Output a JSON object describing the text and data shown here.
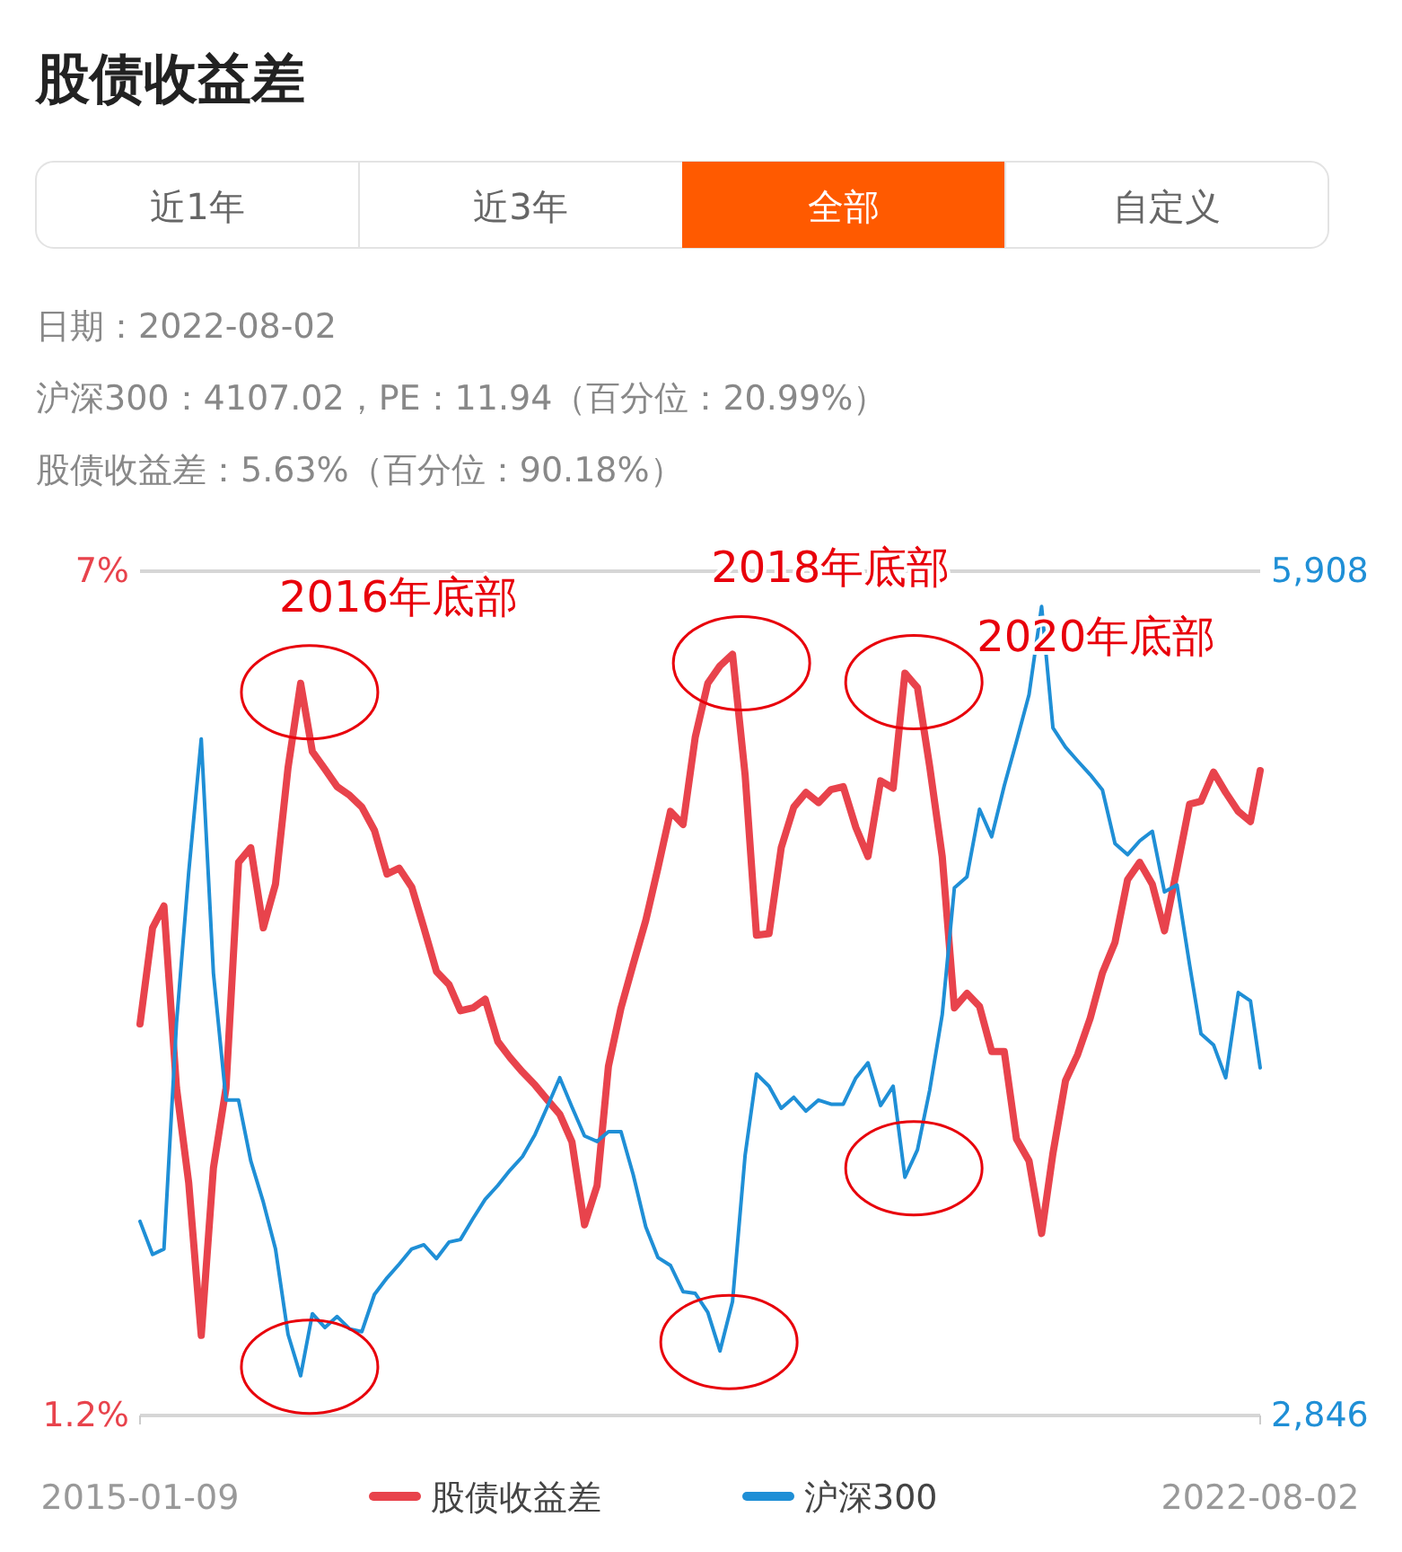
{
  "chart_data": {
    "type": "line",
    "title": "股债收益差",
    "annotations": [
      "近1年",
      "近3年",
      "全部",
      "自定义",
      "日期：2022-08-02",
      "沪深300：4107.02，PE：11.94（百分位：20.99%）",
      "股债收益差：5.63%（百分位：90.18%）",
      {
        "text": "2016年底部",
        "x": "2016-02-09",
        "y": 6.23
      },
      {
        "text": "2018年底部",
        "x": "2019-01-09",
        "y": 6.43
      },
      {
        "text": "2020年底部",
        "x": "2020-03-09",
        "y": 6.3
      }
    ],
    "x": [
      "2015-01-09",
      "2015-02-09",
      "2015-03-09",
      "2015-04-09",
      "2015-05-09",
      "2015-06-09",
      "2015-07-09",
      "2015-08-09",
      "2015-09-09",
      "2015-10-09",
      "2015-11-09",
      "2015-12-09",
      "2016-01-09",
      "2016-02-09",
      "2016-03-09",
      "2016-04-09",
      "2016-05-09",
      "2016-06-09",
      "2016-07-09",
      "2016-08-09",
      "2016-09-09",
      "2016-10-09",
      "2016-11-09",
      "2016-12-09",
      "2017-01-09",
      "2017-02-09",
      "2017-03-09",
      "2017-04-09",
      "2017-05-09",
      "2017-06-09",
      "2017-07-09",
      "2017-08-09",
      "2017-09-09",
      "2017-10-09",
      "2017-11-09",
      "2017-12-09",
      "2018-01-09",
      "2018-02-09",
      "2018-03-09",
      "2018-04-09",
      "2018-05-09",
      "2018-06-09",
      "2018-07-09",
      "2018-08-09",
      "2018-09-09",
      "2018-10-09",
      "2018-11-09",
      "2018-12-09",
      "2019-01-09",
      "2019-02-09",
      "2019-03-09",
      "2019-04-09",
      "2019-05-09",
      "2019-06-09",
      "2019-07-09",
      "2019-08-09",
      "2019-09-09",
      "2019-10-09",
      "2019-11-09",
      "2019-12-09",
      "2020-01-09",
      "2020-02-09",
      "2020-03-09",
      "2020-04-09",
      "2020-05-09",
      "2020-06-09",
      "2020-07-09",
      "2020-08-09",
      "2020-09-09",
      "2020-10-09",
      "2020-11-09",
      "2020-12-09",
      "2021-01-09",
      "2021-02-09",
      "2021-03-09",
      "2021-04-09",
      "2021-05-09",
      "2021-06-09",
      "2021-07-09",
      "2021-08-09",
      "2021-09-09",
      "2021-10-09",
      "2021-11-09",
      "2021-12-09",
      "2022-01-09",
      "2022-02-09",
      "2022-03-09",
      "2022-04-09",
      "2022-05-09",
      "2022-06-09",
      "2022-07-09",
      "2022-08-02"
    ],
    "xlim": [
      "2015-01-09",
      "2022-08-02"
    ],
    "xticks": [
      "2015-01-09",
      "2022-08-02"
    ],
    "ylim": [
      1.2,
      7
    ],
    "yticks": [
      {
        "value": 1.2,
        "label": "1.2%"
      },
      {
        "value": 7,
        "label": "7%"
      }
    ],
    "y2lim": [
      2846,
      5908
    ],
    "y2ticks": [
      {
        "value": 2846,
        "label": "2,846"
      },
      {
        "value": 5908,
        "label": "5,908"
      }
    ],
    "legend": "bottom",
    "series": [
      {
        "name": "股债收益差",
        "color": "#e8434c",
        "values": [
          3.89,
          4.55,
          4.7,
          3.45,
          2.8,
          1.75,
          2.9,
          3.45,
          5.0,
          5.1,
          4.55,
          4.85,
          5.65,
          6.23,
          5.76,
          5.64,
          5.52,
          5.46,
          5.38,
          5.22,
          4.92,
          4.96,
          4.83,
          4.55,
          4.25,
          4.16,
          3.98,
          4.0,
          4.06,
          3.77,
          3.66,
          3.56,
          3.47,
          3.37,
          3.27,
          3.08,
          2.51,
          2.78,
          3.6,
          4.0,
          4.3,
          4.6,
          4.96,
          5.35,
          5.26,
          5.86,
          6.23,
          6.35,
          6.43,
          5.6,
          4.5,
          4.51,
          5.1,
          5.38,
          5.48,
          5.41,
          5.5,
          5.52,
          5.24,
          5.04,
          5.56,
          5.51,
          6.3,
          6.2,
          5.66,
          5.04,
          4.0,
          4.1,
          4.01,
          3.7,
          3.7,
          3.1,
          2.95,
          2.45,
          3.0,
          3.5,
          3.68,
          3.93,
          4.24,
          4.45,
          4.88,
          5.0,
          4.85,
          4.53,
          4.96,
          5.4,
          5.42,
          5.62,
          5.48,
          5.35,
          5.28,
          5.63
        ]
      },
      {
        "name": "沪深300",
        "color": "#1f8fd6",
        "axis": "y2",
        "values": [
          3550,
          3430,
          3450,
          4270,
          4815,
          5300,
          4450,
          3990,
          3990,
          3770,
          3620,
          3450,
          3140,
          2990,
          3215,
          3165,
          3205,
          3160,
          3150,
          3285,
          3345,
          3395,
          3450,
          3465,
          3415,
          3475,
          3484,
          3560,
          3630,
          3680,
          3735,
          3785,
          3865,
          3965,
          4071,
          3965,
          3860,
          3840,
          3875,
          3875,
          3720,
          3530,
          3419,
          3390,
          3295,
          3289,
          3220,
          3080,
          3260,
          3790,
          4085,
          4040,
          3960,
          4000,
          3950,
          3990,
          3975,
          3975,
          4070,
          4125,
          3970,
          4040,
          3710,
          3810,
          4025,
          4300,
          4760,
          4800,
          5045,
          4945,
          5130,
          5290,
          5460,
          5780,
          5340,
          5270,
          5220,
          5170,
          5115,
          4920,
          4880,
          4930,
          4965,
          4745,
          4770,
          4480,
          4230,
          4190,
          4071,
          4380,
          4350,
          4107.02
        ]
      }
    ]
  }
}
